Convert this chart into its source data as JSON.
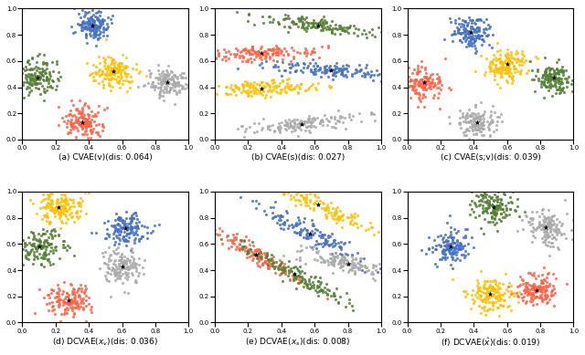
{
  "colors": {
    "blue": "#4472C4",
    "orange": "#FFC000",
    "green": "#548235",
    "red": "#FF6347",
    "gray": "#ABABAB"
  },
  "subtitles": [
    "(a) CVAE(v)(dis: 0.064)",
    "(b) CVAE(s)(dis: 0.027)",
    "(c) CVAE(s;v)(dis: 0.039)",
    "(d) DCVAE($x_v$)(dis: 0.036)",
    "(e) DCVAE($x_s$)(dis: 0.008)",
    "(f) DCVAE($\\hat{x}$)(dis: 0.019)"
  ],
  "n_points": 150,
  "dot_size": 5,
  "marker_size": 20,
  "alpha": 0.85
}
